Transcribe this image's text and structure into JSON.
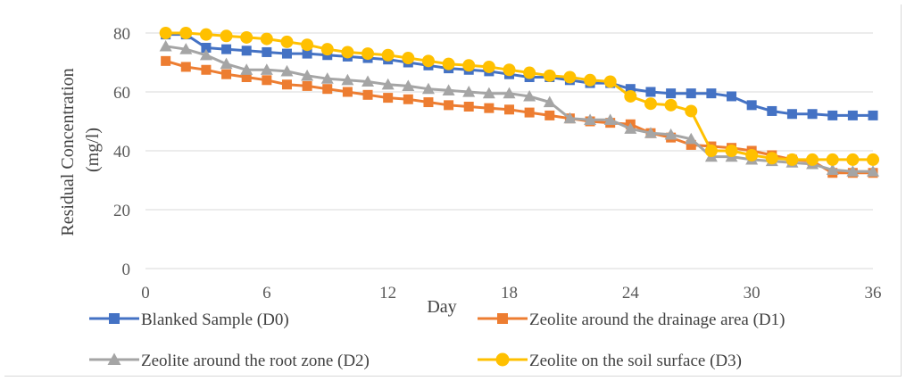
{
  "chart_data": {
    "type": "line",
    "title": "",
    "xlabel": "Day",
    "ylabel_lines": [
      "Residual Concentration",
      "(mg/l)"
    ],
    "xlim": [
      0,
      36
    ],
    "ylim": [
      0,
      80
    ],
    "x_ticks": [
      0,
      6,
      12,
      18,
      24,
      30,
      36
    ],
    "y_ticks": [
      0,
      20,
      40,
      60,
      80
    ],
    "grid": "horizontal",
    "legend_position": "bottom",
    "x": [
      1,
      2,
      3,
      4,
      5,
      6,
      7,
      8,
      9,
      10,
      11,
      12,
      13,
      14,
      15,
      16,
      17,
      18,
      19,
      20,
      21,
      22,
      23,
      24,
      25,
      26,
      27,
      28,
      29,
      30,
      31,
      32,
      33,
      34,
      35,
      36
    ],
    "series": [
      {
        "name": "Blanked Sample (D0)",
        "color": "#4472c4",
        "marker": "square",
        "values": [
          79.5,
          79.5,
          75,
          74.5,
          74,
          73.5,
          73,
          73,
          72.5,
          72,
          71.5,
          71,
          70,
          69,
          68,
          67.5,
          67,
          66,
          65,
          65,
          64,
          63,
          63,
          61,
          60,
          59.5,
          59.5,
          59.5,
          58.5,
          55.5,
          53.5,
          52.5,
          52.5,
          52,
          52,
          52
        ]
      },
      {
        "name": "Zeolite around the drainage area (D1)",
        "color": "#ed7d31",
        "marker": "square",
        "values": [
          70.5,
          68.5,
          67.5,
          66,
          65,
          64,
          62.5,
          62,
          61,
          60,
          59,
          58,
          57.5,
          56.5,
          55.5,
          55,
          54.5,
          54,
          53,
          52,
          51,
          50,
          49.5,
          49,
          46,
          44.5,
          42,
          41.5,
          41,
          40,
          38.5,
          37,
          36.5,
          32.5,
          32.5,
          32.5
        ]
      },
      {
        "name": "Zeolite around the root zone (D2)",
        "color": "#a5a5a5",
        "marker": "triangle",
        "values": [
          75.5,
          74.5,
          72.5,
          69.5,
          67.5,
          67.5,
          67,
          65.5,
          64.5,
          64,
          63.5,
          62.5,
          62,
          61,
          60.5,
          60,
          59.5,
          59.5,
          58.5,
          56.5,
          51,
          50.5,
          50.5,
          47.5,
          46,
          45.5,
          44,
          38,
          38,
          37,
          36.5,
          36,
          35.5,
          33.5,
          33,
          33
        ]
      },
      {
        "name": "Zeolite on the soil surface (D3)",
        "color": "#ffc000",
        "marker": "circle",
        "values": [
          80,
          80,
          79.5,
          79,
          78.5,
          78,
          77,
          76,
          74.5,
          73.5,
          73,
          72.5,
          71.5,
          70.5,
          69.5,
          69,
          68.5,
          67.5,
          66.5,
          65.5,
          65,
          64,
          63.5,
          58.5,
          56,
          55.5,
          53.5,
          40,
          40,
          38.5,
          37.5,
          37,
          37,
          37,
          37,
          37
        ]
      }
    ]
  }
}
